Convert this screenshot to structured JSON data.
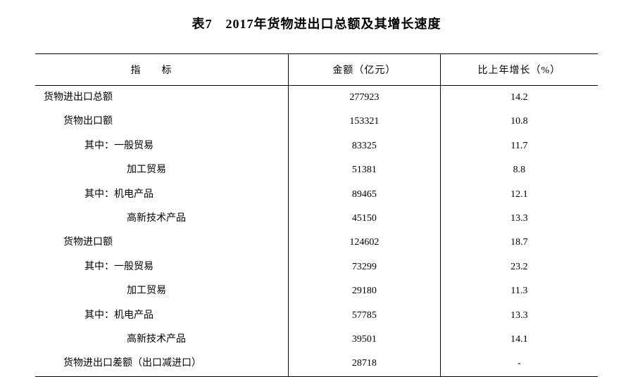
{
  "title": "表7　2017年货物进出口总额及其增长速度",
  "table": {
    "type": "table",
    "columns": [
      "指标",
      "金额（亿元）",
      "比上年增长（%）"
    ],
    "header_fontsize": 14,
    "body_fontsize": 14,
    "border_color": "#000000",
    "background_color": "#ffffff",
    "text_color": "#000000",
    "column_widths": [
      "45%",
      "27%",
      "28%"
    ],
    "column_alignment": [
      "left",
      "center",
      "center"
    ],
    "rows": [
      {
        "indicator": "货物进出口总额",
        "amount": "277923",
        "growth": "14.2",
        "indent": 0
      },
      {
        "indicator": "货物出口额",
        "amount": "153321",
        "growth": "10.8",
        "indent": 1
      },
      {
        "indicator": "其中：一般贸易",
        "amount": "83325",
        "growth": "11.7",
        "indent": 2
      },
      {
        "indicator": "加工贸易",
        "amount": "51381",
        "growth": "8.8",
        "indent": 3
      },
      {
        "indicator": "其中：机电产品",
        "amount": "89465",
        "growth": "12.1",
        "indent": 2
      },
      {
        "indicator": "高新技术产品",
        "amount": "45150",
        "growth": "13.3",
        "indent": 3
      },
      {
        "indicator": "货物进口额",
        "amount": "124602",
        "growth": "18.7",
        "indent": 1
      },
      {
        "indicator": "其中：一般贸易",
        "amount": "73299",
        "growth": "23.2",
        "indent": 2
      },
      {
        "indicator": "加工贸易",
        "amount": "29180",
        "growth": "11.3",
        "indent": 3
      },
      {
        "indicator": "其中：机电产品",
        "amount": "57785",
        "growth": "13.3",
        "indent": 2
      },
      {
        "indicator": "高新技术产品",
        "amount": "39501",
        "growth": "14.1",
        "indent": 3
      },
      {
        "indicator": "货物进出口差额（出口减进口）",
        "amount": "28718",
        "growth": "-",
        "indent": 1
      }
    ]
  }
}
